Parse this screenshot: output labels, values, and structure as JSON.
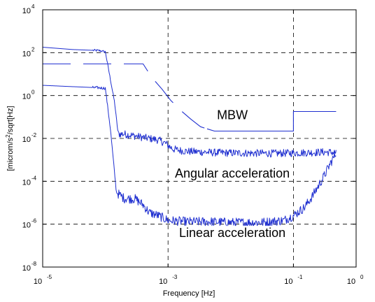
{
  "chart_data": {
    "type": "line",
    "title": "",
    "xlabel": "Frequency [Hz]",
    "ylabel": "[microm/s²/sqrt[Hz]",
    "ylabel_parts": [
      "[microm/s",
      "2",
      "/sqrt[Hz]"
    ],
    "xscale": "log",
    "yscale": "log",
    "xlim": [
      1e-05,
      1
    ],
    "ylim": [
      1e-08,
      10000.0
    ],
    "grid": true,
    "grid_style": "dashed",
    "x_ticks": [
      {
        "base": "10",
        "exp": "-5",
        "value": 1e-05
      },
      {
        "base": "10",
        "exp": "-3",
        "value": 0.001
      },
      {
        "base": "10",
        "exp": "-1",
        "value": 0.1
      },
      {
        "base": "10",
        "exp": "0",
        "value": 1
      }
    ],
    "y_ticks": [
      {
        "base": "10",
        "exp": "4",
        "value": 10000.0
      },
      {
        "base": "10",
        "exp": "2",
        "value": 100.0
      },
      {
        "base": "10",
        "exp": "0",
        "value": 1
      },
      {
        "base": "10",
        "exp": "-2",
        "value": 0.01
      },
      {
        "base": "10",
        "exp": "-4",
        "value": 0.0001
      },
      {
        "base": "10",
        "exp": "-6",
        "value": 1e-06
      },
      {
        "base": "10",
        "exp": "-8",
        "value": 1e-08
      }
    ],
    "annotations": [
      {
        "text": "MBW",
        "x": 0.0106,
        "y": 0.08
      },
      {
        "text": "Angular acceleration",
        "x": 0.0106,
        "y": 0.00015
      },
      {
        "text": "Linear acceleration",
        "x": 0.0106,
        "y": 2.5e-07
      }
    ],
    "color": "#1f2fd0",
    "series": [
      {
        "name": "",
        "style": "dashed",
        "points": [
          [
            1e-05,
            30
          ],
          [
            0.00012,
            30
          ],
          [
            0.00013,
            30
          ],
          [
            0.0002,
            30
          ],
          [
            0.0003,
            30
          ],
          [
            0.0004,
            30
          ],
          [
            0.00055,
            7
          ],
          [
            0.0008,
            2
          ],
          [
            0.0011,
            0.6
          ],
          [
            0.0016,
            0.2
          ],
          [
            0.0023,
            0.08
          ],
          [
            0.0033,
            0.035
          ],
          [
            0.0042,
            0.028
          ]
        ]
      },
      {
        "name": "",
        "style": "solid",
        "points": [
          [
            0.0042,
            0.028
          ],
          [
            0.0055,
            0.022
          ],
          [
            0.1,
            0.022
          ],
          [
            0.1,
            0.18
          ],
          [
            0.48,
            0.18
          ]
        ]
      },
      {
        "name": "",
        "style": "noisy",
        "noise_amp": 0.18,
        "points": [
          [
            1e-05,
            180
          ],
          [
            3e-05,
            140
          ],
          [
            8e-05,
            125
          ],
          [
            0.0001,
            110
          ],
          [
            0.00014,
            0.5
          ],
          [
            0.00016,
            0.016
          ],
          [
            0.0002,
            0.016
          ],
          [
            0.0003,
            0.013
          ],
          [
            0.0004,
            0.011
          ],
          [
            0.0005,
            0.01
          ],
          [
            0.0007,
            0.0085
          ],
          [
            0.0009,
            0.006
          ],
          [
            0.0012,
            0.0032
          ],
          [
            0.0015,
            0.0028
          ],
          [
            0.002,
            0.0025
          ],
          [
            0.005,
            0.0022
          ],
          [
            0.01,
            0.0021
          ],
          [
            0.05,
            0.002
          ],
          [
            0.1,
            0.0021
          ],
          [
            0.2,
            0.0022
          ],
          [
            0.3,
            0.0023
          ],
          [
            0.48,
            0.0022
          ]
        ]
      },
      {
        "name": "",
        "style": "noisy",
        "noise_amp": 0.22,
        "points": [
          [
            1e-05,
            3
          ],
          [
            3e-05,
            2.6
          ],
          [
            8e-05,
            2.3
          ],
          [
            0.0001,
            2.2
          ],
          [
            0.00012,
            0.03
          ],
          [
            0.00015,
            3e-05
          ],
          [
            0.0002,
            1.6e-05
          ],
          [
            0.0003,
            1.5e-05
          ],
          [
            0.0004,
            8e-06
          ],
          [
            0.0005,
            3.5e-06
          ],
          [
            0.0007,
            2.5e-06
          ],
          [
            0.001,
            1.5e-06
          ],
          [
            0.002,
            1.3e-06
          ],
          [
            0.005,
            1.3e-06
          ],
          [
            0.01,
            1.2e-06
          ],
          [
            0.03,
            1.2e-06
          ],
          [
            0.07,
            1.5e-06
          ],
          [
            0.1,
            2.5e-06
          ],
          [
            0.15,
            6e-06
          ],
          [
            0.2,
            2e-05
          ],
          [
            0.3,
            0.00015
          ],
          [
            0.4,
            0.0008
          ],
          [
            0.48,
            0.0021
          ]
        ]
      }
    ]
  }
}
